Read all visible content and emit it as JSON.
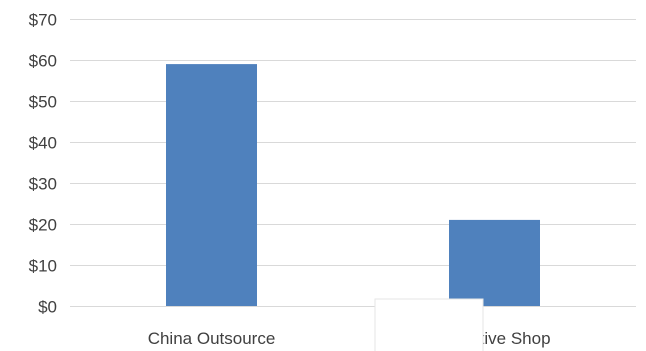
{
  "chart_data": {
    "type": "bar",
    "title": "",
    "xlabel": "",
    "ylabel": "",
    "categories": [
      "China Outsource",
      "Captive Shop"
    ],
    "values": [
      59,
      21
    ],
    "ylim": [
      0,
      70
    ],
    "yticks": [
      0,
      10,
      20,
      30,
      40,
      50,
      60,
      70
    ],
    "ytick_labels": [
      "$0",
      "$10",
      "$20",
      "$30",
      "$40",
      "$50",
      "$60",
      "$70"
    ],
    "grid": true,
    "legend": "none",
    "bar_color": "#4f81bd"
  }
}
